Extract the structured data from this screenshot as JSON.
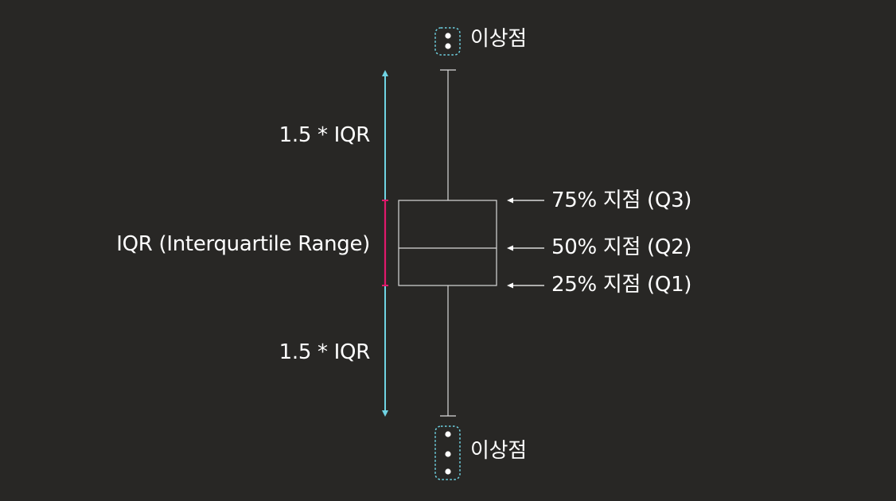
{
  "outlier_label_top": "이상점",
  "outlier_label_bottom": "이상점",
  "upper_whisker_label": "1.5 * IQR",
  "lower_whisker_label": "1.5 * IQR",
  "iqr_label": "IQR (Interquartile Range)",
  "quartiles": [
    {
      "label": "75% 지점 (Q3)"
    },
    {
      "label": "50% 지점 (Q2)"
    },
    {
      "label": "25% 지점 (Q1)"
    }
  ],
  "colors": {
    "background": "#282725",
    "box_stroke": "#d9d9d9",
    "whisker_range_arrow": "#6fd3e3",
    "iqr_range_bar": "#e0196b",
    "outlier_frame": "#6fd3e3",
    "outlier_dot": "#ffffff",
    "text": "#ffffff"
  }
}
